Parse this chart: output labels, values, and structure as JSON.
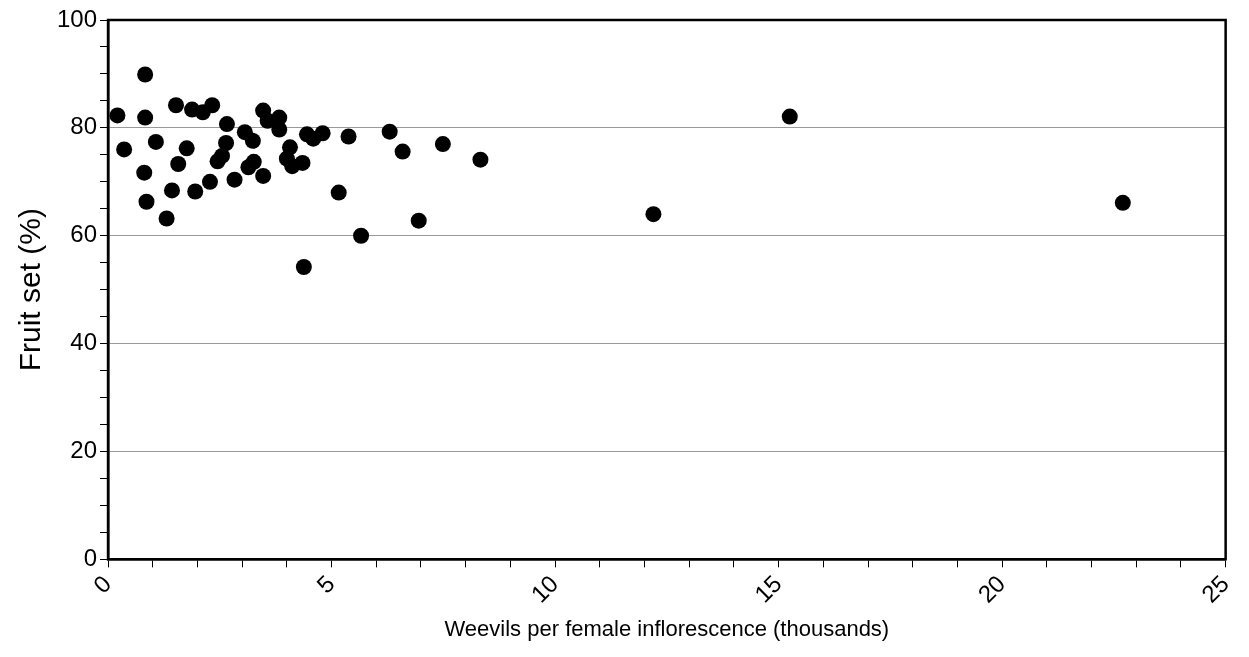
{
  "chart_data": {
    "type": "scatter",
    "xlabel": "Weevils per female inflorescence (thousands)",
    "ylabel": "Fruit set (%)",
    "x": [
      0.21,
      0.83,
      0.83,
      0.36,
      1.07,
      0.81,
      0.86,
      1.31,
      1.43,
      1.57,
      1.52,
      1.88,
      1.76,
      1.95,
      2.12,
      2.33,
      2.28,
      2.45,
      2.55,
      2.66,
      2.64,
      2.83,
      3.06,
      3.24,
      3.26,
      3.14,
      3.47,
      3.47,
      3.57,
      3.83,
      3.83,
      4.07,
      4.0,
      4.12,
      4.35,
      4.38,
      4.45,
      4.59,
      4.8,
      5.38,
      5.16,
      5.66,
      6.3,
      6.59,
      6.95,
      7.49,
      8.33,
      12.2,
      15.25,
      22.7
    ],
    "values": [
      82.3,
      89.9,
      81.9,
      76,
      77.4,
      71.7,
      66.3,
      63.2,
      68.4,
      73.3,
      84.2,
      83.4,
      76.2,
      68.2,
      82.9,
      84.2,
      70,
      73.8,
      74.8,
      80.7,
      77.2,
      70.4,
      79.2,
      77.6,
      73.7,
      72.7,
      71.1,
      83.2,
      81.3,
      81.9,
      79.7,
      76.4,
      74.3,
      72.9,
      73.5,
      54.2,
      78.8,
      78,
      79,
      78.4,
      68,
      60,
      79.3,
      75.6,
      62.8,
      77,
      74.1,
      64,
      82.1,
      66.1
    ],
    "color": "#000000",
    "marker": "circle",
    "grid": "y",
    "legend": false,
    "xlim": [
      0,
      25
    ],
    "xticks": [
      0,
      {
        "value": 1,
        "label": null
      },
      {
        "value": 2,
        "label": null
      },
      {
        "value": 3,
        "label": null
      },
      {
        "value": 4,
        "label": null
      },
      5,
      {
        "value": 6,
        "label": null
      },
      {
        "value": 7,
        "label": null
      },
      {
        "value": 8,
        "label": null
      },
      {
        "value": 9,
        "label": null
      },
      10,
      {
        "value": 11,
        "label": null
      },
      {
        "value": 12,
        "label": null
      },
      {
        "value": 13,
        "label": null
      },
      {
        "value": 14,
        "label": null
      },
      15,
      {
        "value": 16,
        "label": null
      },
      {
        "value": 17,
        "label": null
      },
      {
        "value": 18,
        "label": null
      },
      {
        "value": 19,
        "label": null
      },
      20,
      {
        "value": 21,
        "label": null
      },
      {
        "value": 22,
        "label": null
      },
      {
        "value": 23,
        "label": null
      },
      {
        "value": 24,
        "label": null
      },
      25
    ],
    "ylim": [
      0,
      100
    ],
    "yticks": [
      0,
      {
        "value": 5,
        "label": null
      },
      {
        "value": 10,
        "label": null
      },
      {
        "value": 15,
        "label": null
      },
      20,
      {
        "value": 25,
        "label": null
      },
      {
        "value": 30,
        "label": null
      },
      {
        "value": 35,
        "label": null
      },
      40,
      {
        "value": 45,
        "label": null
      },
      {
        "value": 50,
        "label": null
      },
      {
        "value": 55,
        "label": null
      },
      60,
      {
        "value": 65,
        "label": null
      },
      {
        "value": 70,
        "label": null
      },
      {
        "value": 75,
        "label": null
      },
      80,
      {
        "value": 85,
        "label": null
      },
      {
        "value": 90,
        "label": null
      },
      {
        "value": 95,
        "label": null
      },
      100
    ]
  }
}
